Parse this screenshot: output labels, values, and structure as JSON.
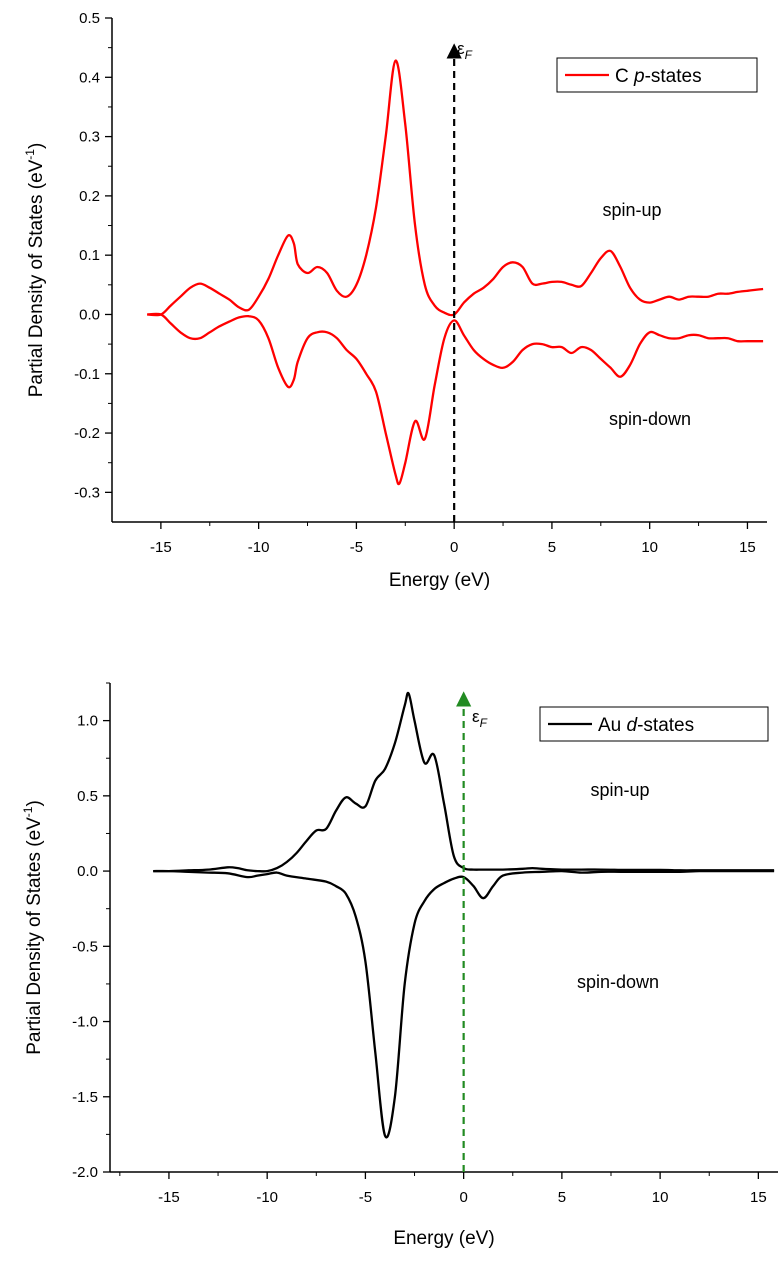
{
  "chart_data": [
    {
      "type": "line",
      "xlabel": "Energy (eV)",
      "ylabel": "Partial Density of States (eV",
      "ylabel_sup": "-1",
      "ylabel_close": ")",
      "xlim": [
        -17.5,
        16
      ],
      "ylim": [
        -0.35,
        0.5
      ],
      "xticks": [
        -15,
        -10,
        -5,
        0,
        5,
        10,
        15
      ],
      "xtick_labels": [
        "-15",
        "-10",
        "-5",
        "0",
        "5",
        "10",
        "15"
      ],
      "yticks": [
        -0.3,
        -0.2,
        -0.1,
        0.0,
        0.1,
        0.2,
        0.3,
        0.4,
        0.5
      ],
      "ytick_labels": [
        "-0.3",
        "-0.2",
        "-0.1",
        "0.0",
        "0.1",
        "0.2",
        "0.3",
        "0.4",
        "0.5"
      ],
      "series_color": "#ff0000",
      "fermi_color": "#000000",
      "fermi_label": "ε",
      "fermi_sub": "F",
      "legend": {
        "prefix": "C ",
        "italic": "p",
        "suffix": "-states",
        "placement": "top-right"
      },
      "annotations": {
        "up": "spin-up",
        "down": "spin-down"
      },
      "series": [
        {
          "x": [
            -15.7,
            -15,
            -14.5,
            -14,
            -13.5,
            -13,
            -12.5,
            -12,
            -11.5,
            -11,
            -10.5,
            -10,
            -9.5,
            -9,
            -8.5,
            -8.2,
            -8,
            -7.5,
            -7,
            -6.5,
            -6,
            -5.5,
            -5,
            -4.5,
            -4,
            -3.5,
            -3,
            -2.5,
            -2,
            -1.5,
            -1,
            -0.5,
            0,
            0.5,
            1,
            1.5,
            2,
            2.5,
            3,
            3.5,
            4,
            4.5,
            5,
            5.5,
            6,
            6.5,
            7,
            7.5,
            8,
            8.5,
            9,
            9.5,
            10,
            10.5,
            11,
            11.5,
            12,
            12.5,
            13,
            13.5,
            14,
            14.5,
            15,
            15.5,
            15.8
          ],
          "y": [
            0.0,
            0.0,
            0.015,
            0.03,
            0.045,
            0.052,
            0.045,
            0.035,
            0.025,
            0.012,
            0.008,
            0.03,
            0.06,
            0.1,
            0.133,
            0.12,
            0.085,
            0.07,
            0.08,
            0.07,
            0.04,
            0.03,
            0.05,
            0.1,
            0.18,
            0.3,
            0.428,
            0.32,
            0.15,
            0.05,
            0.015,
            0.003,
            0.0,
            0.02,
            0.035,
            0.045,
            0.06,
            0.08,
            0.088,
            0.08,
            0.052,
            0.052,
            0.055,
            0.055,
            0.05,
            0.048,
            0.07,
            0.095,
            0.107,
            0.08,
            0.045,
            0.025,
            0.02,
            0.025,
            0.03,
            0.025,
            0.03,
            0.03,
            0.03,
            0.035,
            0.035,
            0.038,
            0.04,
            0.042,
            0.043
          ]
        },
        {
          "x": [
            -15.7,
            -15,
            -14.5,
            -14,
            -13.5,
            -13,
            -12.5,
            -12,
            -11.5,
            -11,
            -10.5,
            -10,
            -9.5,
            -9,
            -8.5,
            -8.2,
            -8,
            -7.5,
            -7,
            -6.5,
            -6,
            -5.5,
            -5,
            -4.5,
            -4,
            -3.5,
            -3,
            -2.8,
            -2.5,
            -2,
            -1.5,
            -1,
            -0.5,
            0,
            0.5,
            1,
            1.5,
            2,
            2.5,
            3,
            3.5,
            4,
            4.5,
            5,
            5.5,
            6,
            6.5,
            7,
            7.5,
            8,
            8.5,
            9,
            9.5,
            10,
            10.5,
            11,
            11.5,
            12,
            12.5,
            13,
            13.5,
            14,
            14.5,
            15,
            15.5,
            15.8
          ],
          "y": [
            0.0,
            0.0,
            -0.015,
            -0.03,
            -0.04,
            -0.04,
            -0.03,
            -0.02,
            -0.012,
            -0.005,
            -0.003,
            -0.01,
            -0.04,
            -0.09,
            -0.122,
            -0.11,
            -0.08,
            -0.04,
            -0.03,
            -0.03,
            -0.04,
            -0.06,
            -0.075,
            -0.1,
            -0.13,
            -0.2,
            -0.27,
            -0.285,
            -0.25,
            -0.18,
            -0.21,
            -0.12,
            -0.04,
            -0.01,
            -0.035,
            -0.06,
            -0.075,
            -0.085,
            -0.09,
            -0.08,
            -0.06,
            -0.05,
            -0.05,
            -0.055,
            -0.055,
            -0.065,
            -0.055,
            -0.06,
            -0.075,
            -0.09,
            -0.105,
            -0.085,
            -0.05,
            -0.03,
            -0.035,
            -0.04,
            -0.04,
            -0.035,
            -0.035,
            -0.04,
            -0.04,
            -0.04,
            -0.045,
            -0.045,
            -0.045,
            -0.045
          ]
        }
      ]
    },
    {
      "type": "line",
      "xlabel": "Energy (eV)",
      "ylabel": "Partial Density of States (eV",
      "ylabel_sup": "-1",
      "ylabel_close": ")",
      "xlim": [
        -18,
        16
      ],
      "ylim": [
        -2.0,
        1.25
      ],
      "xticks": [
        -15,
        -10,
        -5,
        0,
        5,
        10,
        15
      ],
      "xtick_labels": [
        "-15",
        "-10",
        "-5",
        "0",
        "5",
        "10",
        "15"
      ],
      "yticks": [
        -2.0,
        -1.5,
        -1.0,
        -0.5,
        0.0,
        0.5,
        1.0
      ],
      "ytick_labels": [
        "-2.0",
        "-1.5",
        "-1.0",
        "-0.5",
        "0.0",
        "0.5",
        "1.0"
      ],
      "series_color": "#000000",
      "fermi_color": "#228b22",
      "fermi_label": "ε",
      "fermi_sub": "F",
      "legend": {
        "prefix": "Au ",
        "italic": "d",
        "suffix": "-states",
        "placement": "top-right"
      },
      "annotations": {
        "up": "spin-up",
        "down": "spin-down"
      },
      "series": [
        {
          "x": [
            -15.8,
            -15,
            -14,
            -13,
            -12,
            -11.5,
            -11,
            -10.5,
            -10,
            -9.5,
            -9,
            -8.5,
            -8,
            -7.5,
            -7,
            -6.5,
            -6,
            -5.5,
            -5,
            -4.5,
            -4,
            -3.5,
            -3,
            -2.8,
            -2.5,
            -2,
            -1.5,
            -1,
            -0.5,
            0,
            0.5,
            1,
            2,
            3,
            3.5,
            4,
            5,
            6,
            7,
            8,
            9,
            10,
            11,
            12,
            13,
            14,
            15,
            15.8
          ],
          "y": [
            0.0,
            0.0,
            0.005,
            0.01,
            0.025,
            0.02,
            0.005,
            0.0,
            0.0,
            0.02,
            0.06,
            0.12,
            0.2,
            0.27,
            0.28,
            0.4,
            0.49,
            0.45,
            0.43,
            0.6,
            0.68,
            0.85,
            1.1,
            1.18,
            1.0,
            0.72,
            0.77,
            0.45,
            0.1,
            0.02,
            0.01,
            0.01,
            0.01,
            0.015,
            0.02,
            0.015,
            0.01,
            0.01,
            0.01,
            0.008,
            0.008,
            0.008,
            0.005,
            0.005,
            0.005,
            0.005,
            0.005,
            0.005
          ]
        },
        {
          "x": [
            -15.8,
            -15,
            -14,
            -13,
            -12,
            -11,
            -10.5,
            -10,
            -9.5,
            -9,
            -8,
            -7,
            -6.5,
            -6,
            -5.5,
            -5,
            -4.5,
            -4,
            -3.5,
            -3,
            -2.5,
            -2,
            -1.5,
            -1,
            -0.5,
            0,
            0.5,
            1,
            1.5,
            2,
            3,
            4,
            5,
            6,
            7,
            8,
            9,
            10,
            11,
            12,
            13,
            14,
            15,
            15.8
          ],
          "y": [
            0.0,
            0.0,
            -0.005,
            -0.01,
            -0.015,
            -0.04,
            -0.03,
            -0.02,
            -0.01,
            -0.03,
            -0.05,
            -0.07,
            -0.1,
            -0.15,
            -0.3,
            -0.6,
            -1.2,
            -1.76,
            -1.5,
            -0.75,
            -0.35,
            -0.2,
            -0.12,
            -0.08,
            -0.05,
            -0.04,
            -0.1,
            -0.18,
            -0.1,
            -0.03,
            -0.01,
            -0.005,
            0.0,
            -0.01,
            -0.005,
            -0.005,
            -0.005,
            -0.005,
            -0.005,
            0.0,
            0.0,
            0.0,
            0.0,
            0.0
          ]
        }
      ]
    }
  ]
}
